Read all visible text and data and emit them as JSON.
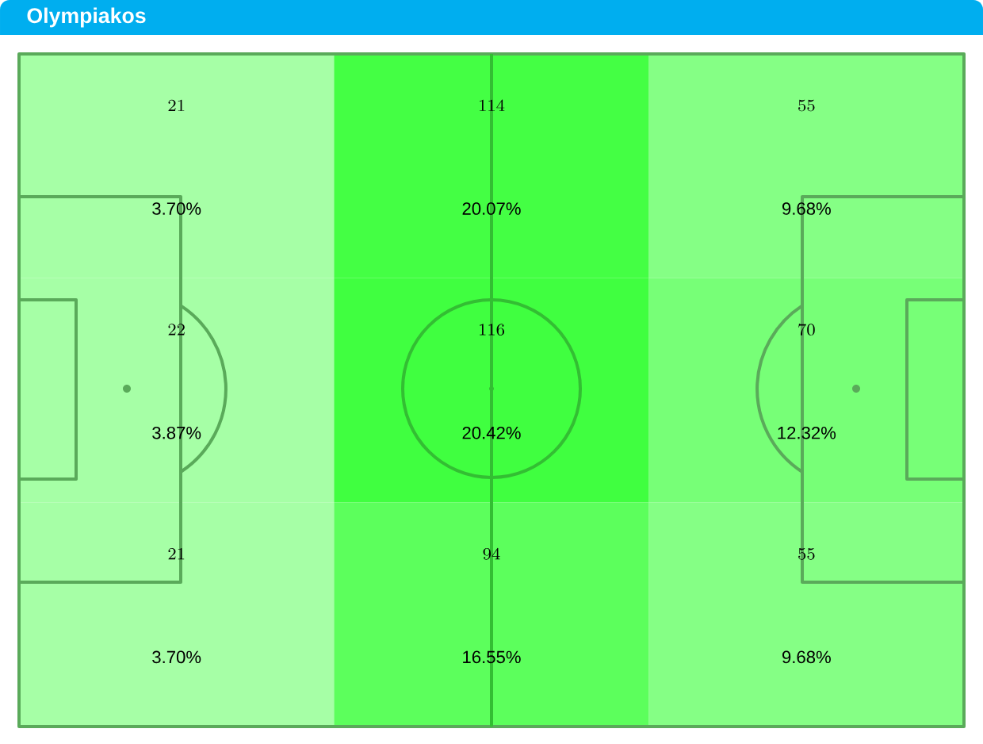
{
  "chart_data": {
    "type": "heatmap",
    "title": "Olympiakos",
    "categories": [
      null,
      null,
      null
    ],
    "y_categories": [
      null,
      null,
      null
    ],
    "cells": [
      [
        21,
        114,
        55
      ],
      [
        22,
        116,
        70
      ],
      [
        21,
        94,
        55
      ]
    ],
    "data_labels": true,
    "annotations": [
      "3.70%",
      "20.07%",
      "9.68%",
      "3.87%",
      "20.42%",
      "12.32%",
      "3.70%",
      "16.55%",
      "9.68%"
    ],
    "colors": [
      [
        "#a6ffa6",
        "#44ff44",
        "#85ff85"
      ],
      [
        "#a6ffa6",
        "#40ff40",
        "#77ff77"
      ],
      [
        "#a6ffa6",
        "#5cff5c",
        "#85ff85"
      ]
    ]
  }
}
